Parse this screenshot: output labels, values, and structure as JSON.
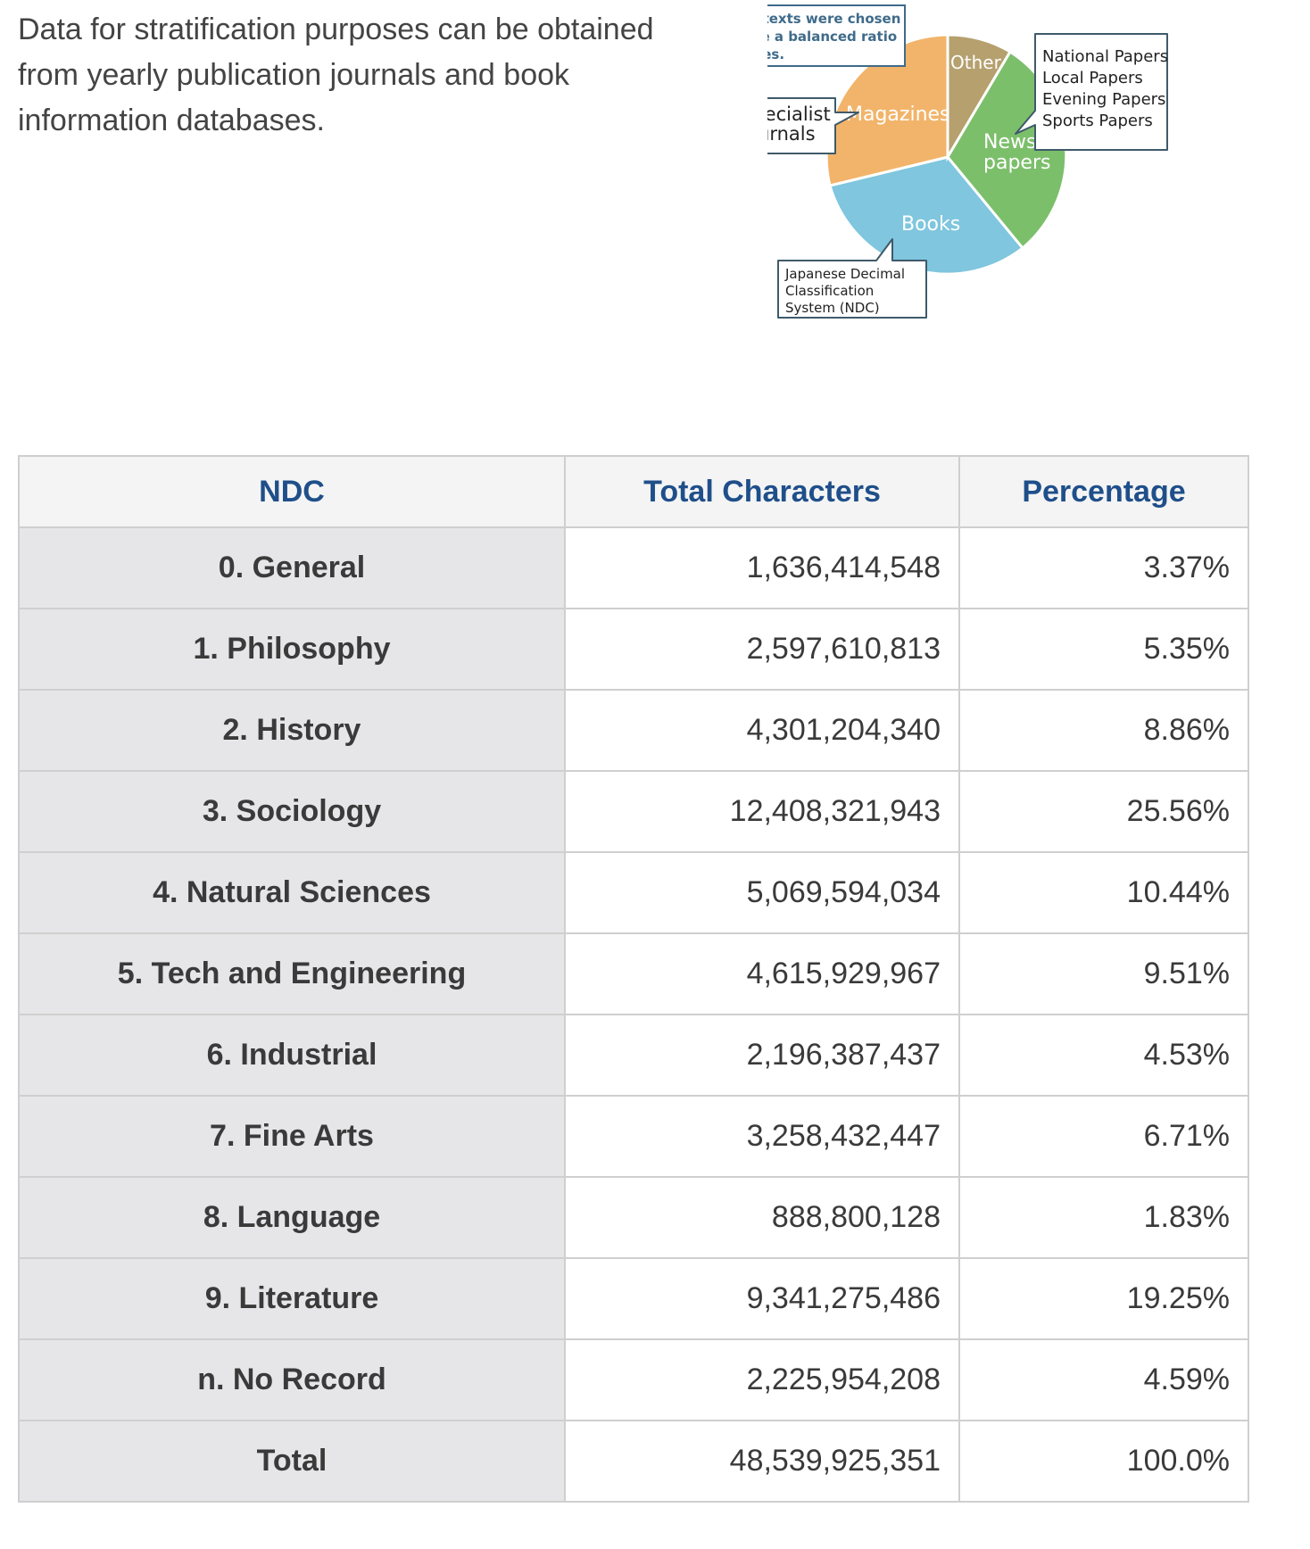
{
  "intro_text": "Data for stratification purposes can be obtained from yearly publication journals and book information databases.",
  "figure": {
    "note": [
      "Various texts were chosen",
      "to create a balanced ratio",
      "of sources."
    ],
    "slices": {
      "other": "Other",
      "magazines": "Magazines",
      "news": [
        "News",
        "papers"
      ],
      "books": "Books"
    },
    "colors": {
      "other": "#b5a06e",
      "magazines": "#f2b46a",
      "news": "#7cbf6b",
      "books": "#7fc6de"
    },
    "specialist_callout": [
      "Specialist",
      "Journals"
    ],
    "newspapers_callout": [
      "National Papers",
      "Local Papers",
      "Evening Papers",
      "Sports Papers"
    ],
    "ndc_callout": [
      "Japanese Decimal",
      "Classification",
      "System (NDC)"
    ]
  },
  "table": {
    "headers": [
      "NDC",
      "Total Characters",
      "Percentage"
    ],
    "rows": [
      {
        "ndc": "0. General",
        "total": "1,636,414,548",
        "pct": "3.37%"
      },
      {
        "ndc": "1. Philosophy",
        "total": "2,597,610,813",
        "pct": "5.35%"
      },
      {
        "ndc": "2. History",
        "total": "4,301,204,340",
        "pct": "8.86%"
      },
      {
        "ndc": "3. Sociology",
        "total": "12,408,321,943",
        "pct": "25.56%"
      },
      {
        "ndc": "4. Natural Sciences",
        "total": "5,069,594,034",
        "pct": "10.44%"
      },
      {
        "ndc": "5. Tech and Engineering",
        "total": "4,615,929,967",
        "pct": "9.51%"
      },
      {
        "ndc": "6. Industrial",
        "total": "2,196,387,437",
        "pct": "4.53%"
      },
      {
        "ndc": "7. Fine Arts",
        "total": "3,258,432,447",
        "pct": "6.71%"
      },
      {
        "ndc": "8. Language",
        "total": "888,800,128",
        "pct": "1.83%"
      },
      {
        "ndc": "9. Literature",
        "total": "9,341,275,486",
        "pct": "19.25%"
      },
      {
        "ndc": "n. No Record",
        "total": "2,225,954,208",
        "pct": "4.59%"
      },
      {
        "ndc": "Total",
        "total": "48,539,925,351",
        "pct": "100.0%"
      }
    ]
  }
}
